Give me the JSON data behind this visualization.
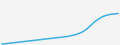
{
  "x": [
    0,
    1,
    2,
    3,
    4,
    5,
    6,
    7,
    8,
    9,
    10,
    11,
    12,
    13,
    14,
    15,
    16,
    17,
    18,
    19,
    20,
    21,
    22,
    23,
    24,
    25,
    26,
    27,
    28,
    29,
    30
  ],
  "y": [
    2,
    3,
    4,
    5,
    6,
    7,
    8,
    9,
    10,
    11,
    12,
    13,
    14,
    15,
    16,
    17,
    18,
    19,
    21,
    23,
    26,
    30,
    36,
    44,
    52,
    58,
    63,
    66,
    68,
    69,
    70
  ],
  "line_color": "#3db0e0",
  "line_width": 1.1,
  "bg_color": "#f4f4f4",
  "ylim": [
    0,
    100
  ],
  "xlim": [
    -0.5,
    30.5
  ]
}
